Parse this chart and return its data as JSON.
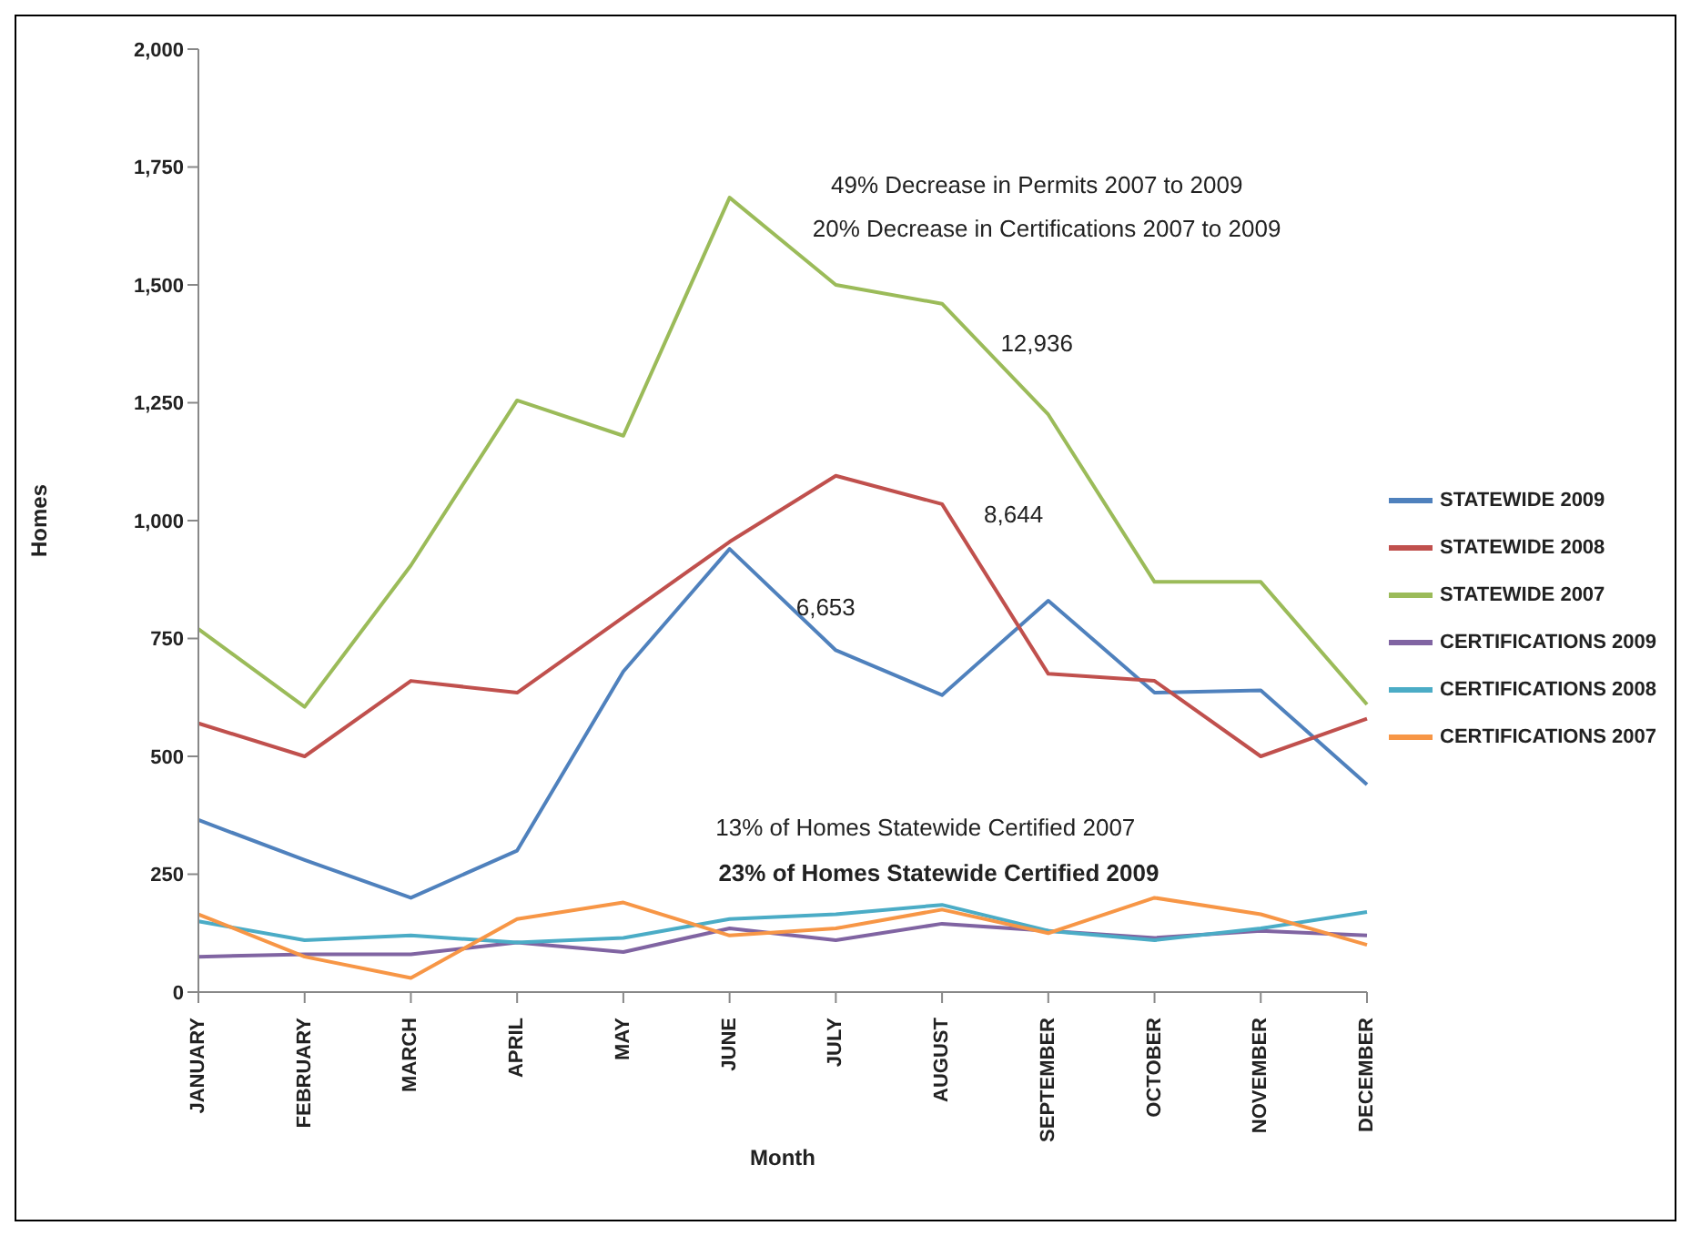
{
  "chart_data": {
    "type": "line",
    "xlabel": "Month",
    "ylabel": "Homes",
    "categories": [
      "JANUARY",
      "FEBRUARY",
      "MARCH",
      "APRIL",
      "MAY",
      "JUNE",
      "JULY",
      "AUGUST",
      "SEPTEMBER",
      "OCTOBER",
      "NOVEMBER",
      "DECEMBER"
    ],
    "series": [
      {
        "name": "STATEWIDE 2009",
        "color": "#4f81bd",
        "values": [
          365,
          280,
          200,
          300,
          680,
          940,
          725,
          630,
          830,
          635,
          640,
          440
        ]
      },
      {
        "name": "STATEWIDE 2008",
        "color": "#c0504d",
        "values": [
          570,
          500,
          660,
          635,
          795,
          955,
          1095,
          1035,
          675,
          660,
          500,
          580
        ]
      },
      {
        "name": "STATEWIDE 2007",
        "color": "#9bbb59",
        "values": [
          770,
          605,
          905,
          1255,
          1180,
          1685,
          1500,
          1460,
          1225,
          870,
          870,
          610
        ]
      },
      {
        "name": "CERTIFICATIONS 2009",
        "color": "#8064a2",
        "values": [
          75,
          80,
          80,
          105,
          85,
          135,
          110,
          145,
          130,
          115,
          130,
          120
        ]
      },
      {
        "name": "CERTIFICATIONS 2008",
        "color": "#4bacc6",
        "values": [
          150,
          110,
          120,
          105,
          115,
          155,
          165,
          185,
          130,
          110,
          135,
          170
        ]
      },
      {
        "name": "CERTIFICATIONS 2007",
        "color": "#f79646",
        "values": [
          165,
          75,
          30,
          155,
          190,
          120,
          135,
          175,
          125,
          200,
          165,
          100
        ]
      }
    ],
    "ylim": [
      0,
      2000
    ],
    "yticks": [
      {
        "value": 0,
        "label": "0"
      },
      {
        "value": 250,
        "label": "250"
      },
      {
        "value": 500,
        "label": "500"
      },
      {
        "value": 750,
        "label": "750"
      },
      {
        "value": 1000,
        "label": "1,000"
      },
      {
        "value": 1250,
        "label": "1,250"
      },
      {
        "value": 1500,
        "label": "1,500"
      },
      {
        "value": 1750,
        "label": "1,750"
      },
      {
        "value": 2000,
        "label": "2,000"
      }
    ],
    "annotations": [
      "49% Decrease in Permits 2007 to 2009",
      "20% Decrease in Certifications 2007 to 2009",
      "13% of Homes Statewide Certified 2007",
      "23% of Homes Statewide Certified 2009",
      "12,936",
      "8,644",
      "6,653"
    ],
    "grid": false,
    "legend": "right",
    "marker": "none",
    "line_style": "solid"
  }
}
